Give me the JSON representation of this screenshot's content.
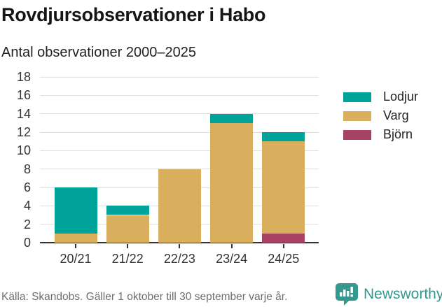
{
  "header": {
    "title": "Rovdjursobservationer i Habo",
    "subtitle": "Antal observationer 2000–2025"
  },
  "chart_data": {
    "type": "bar",
    "stacked": true,
    "title": "Rovdjursobservationer i Habo",
    "subtitle": "Antal observationer 2000–2025",
    "categories": [
      "20/21",
      "21/22",
      "22/23",
      "23/24",
      "24/25"
    ],
    "series": [
      {
        "name": "Lodjur",
        "color": "#00a399",
        "values": [
          5,
          1,
          0,
          1,
          1
        ]
      },
      {
        "name": "Varg",
        "color": "#d9ae5c",
        "values": [
          1,
          3,
          8,
          13,
          10
        ]
      },
      {
        "name": "Björn",
        "color": "#a84366",
        "values": [
          0,
          0,
          0,
          0,
          1
        ]
      }
    ],
    "stack_order_bottom_to_top": [
      "Björn",
      "Varg",
      "Lodjur"
    ],
    "totals": [
      6,
      4,
      8,
      14,
      12
    ],
    "xlabel": "",
    "ylabel": "",
    "ylim": [
      0,
      18
    ],
    "yticks": [
      0,
      2,
      4,
      6,
      8,
      10,
      12,
      14,
      16,
      18
    ],
    "grid": true,
    "legend_position": "right"
  },
  "legend": {
    "items": [
      {
        "label": "Lodjur",
        "color": "#00a399"
      },
      {
        "label": "Varg",
        "color": "#d9ae5c"
      },
      {
        "label": "Björn",
        "color": "#a84366"
      }
    ]
  },
  "footer": {
    "source": "Källa: Skandobs. Gäller 1 oktober till 30 september varje år.",
    "brand": "Newsworthy"
  },
  "colors": {
    "lodjur": "#00a399",
    "varg": "#d9ae5c",
    "bjorn": "#a84366",
    "brand": "#35988e",
    "grid": "#e0e0e0",
    "axis": "#333333",
    "title_text": "#151515",
    "muted_text": "#6e6e6e"
  }
}
